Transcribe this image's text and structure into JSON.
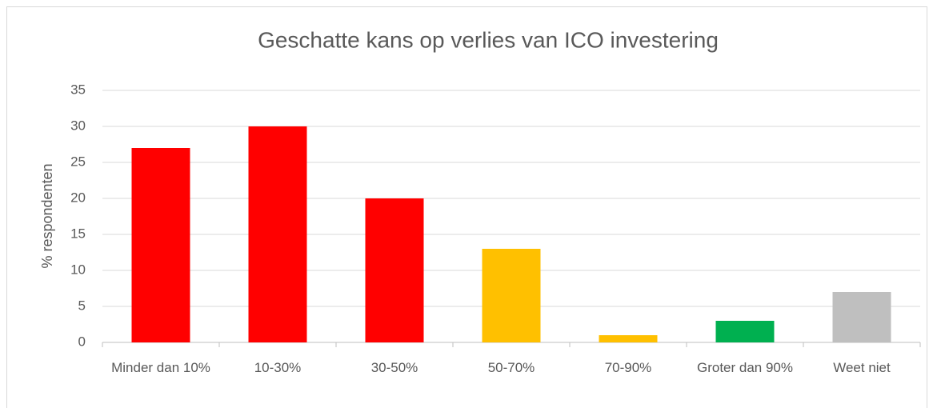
{
  "chart_data": {
    "type": "bar",
    "title": "Geschatte kans op verlies van ICO investering",
    "y_label": "% respondenten",
    "categories": [
      "Minder dan 10%",
      "10-30%",
      "30-50%",
      "50-70%",
      "70-90%",
      "Groter dan 90%",
      "Weet niet"
    ],
    "values": [
      27,
      30,
      20,
      13,
      1,
      3,
      7
    ],
    "colors": [
      "#ff0000",
      "#ff0000",
      "#ff0000",
      "#ffc000",
      "#ffc000",
      "#00b050",
      "#bfbfbf"
    ],
    "ylim": [
      0,
      35
    ],
    "yticks": [
      0,
      5,
      10,
      15,
      20,
      25,
      30,
      35
    ],
    "grid": true
  }
}
